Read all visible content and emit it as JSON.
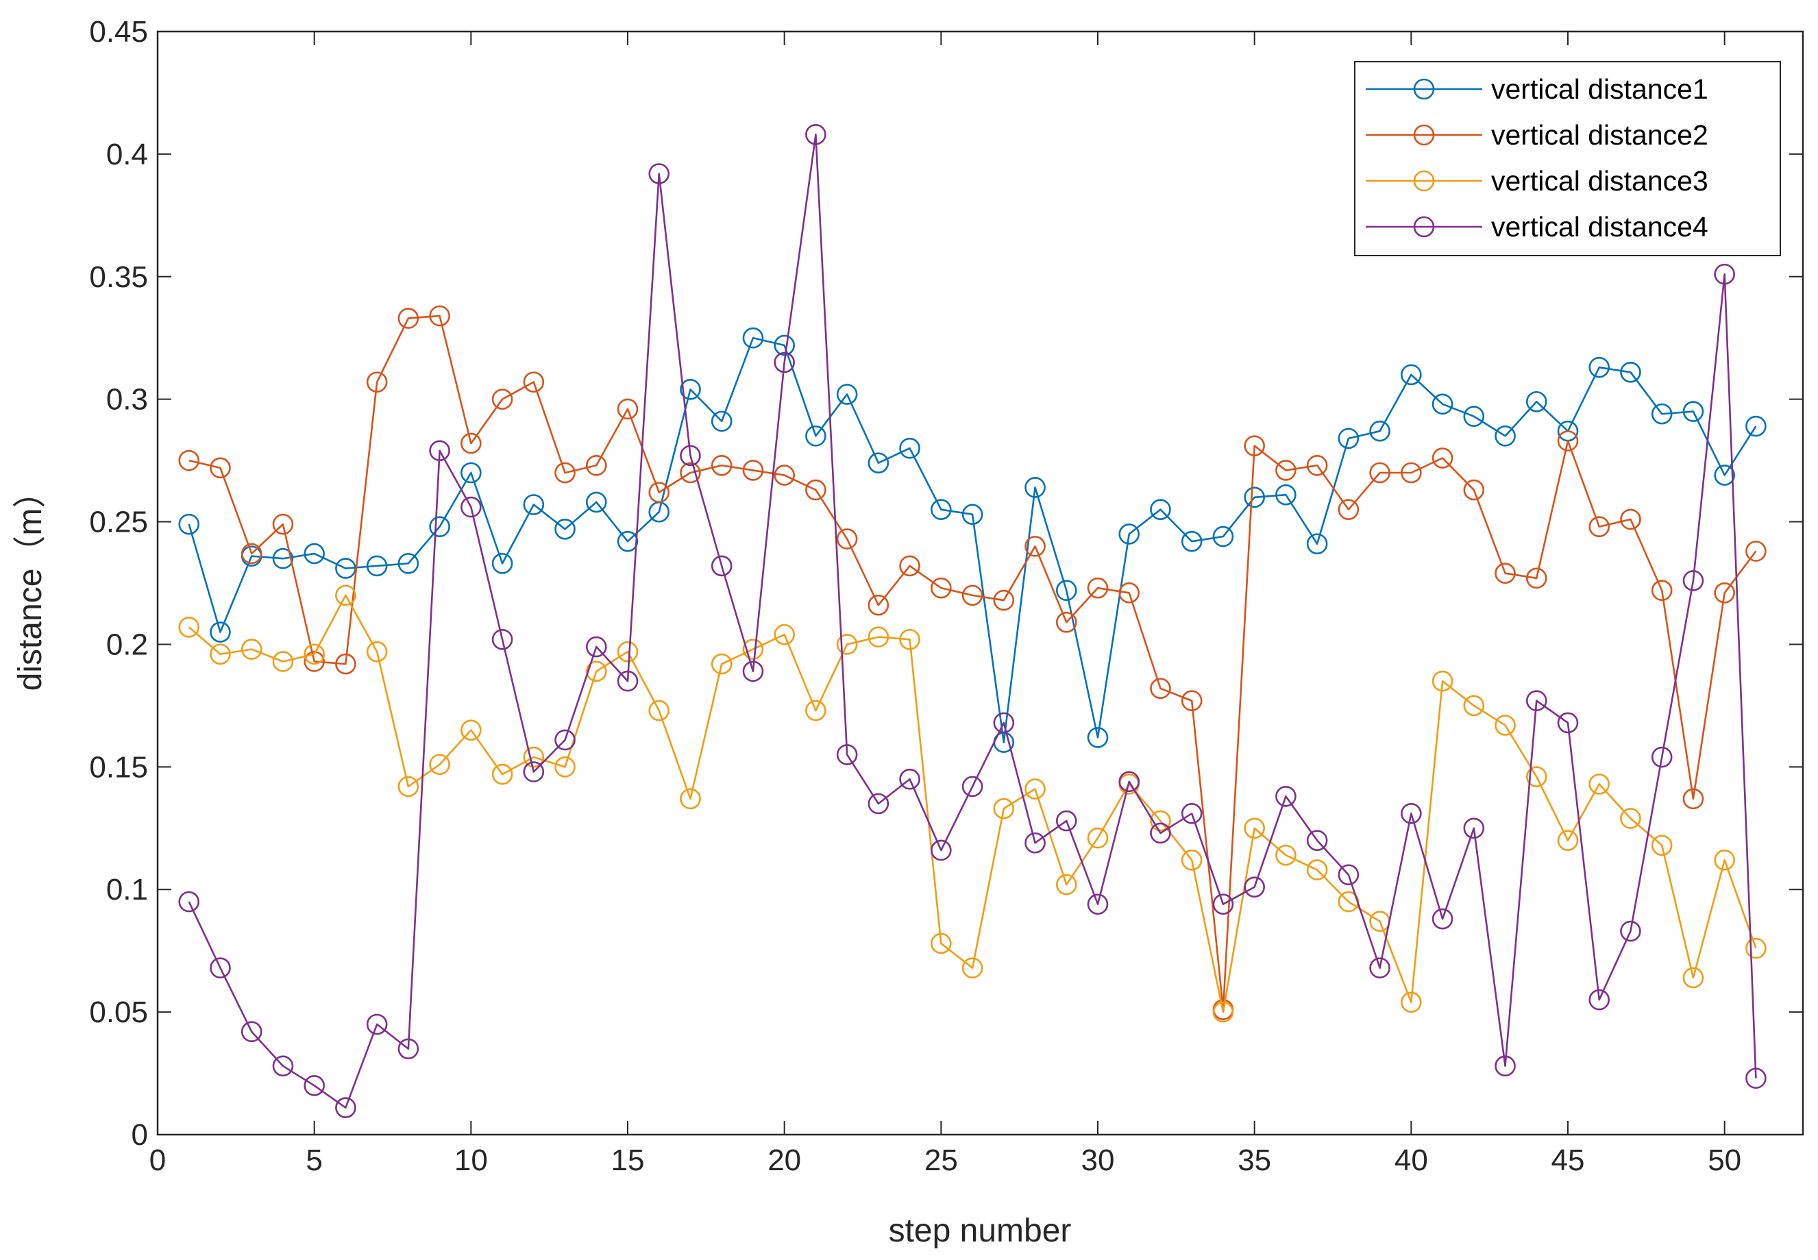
{
  "chart_data": {
    "type": "line",
    "title": "",
    "xlabel": "step number",
    "ylabel": "distance（m）",
    "xlim": [
      0,
      52.5
    ],
    "ylim": [
      0,
      0.45
    ],
    "xticks": [
      0,
      5,
      10,
      15,
      20,
      25,
      30,
      35,
      40,
      45,
      50
    ],
    "xtick_labels": [
      "0",
      "5",
      "10",
      "15",
      "20",
      "25",
      "30",
      "35",
      "40",
      "45",
      "50"
    ],
    "yticks": [
      0,
      0.05,
      0.1,
      0.15,
      0.2,
      0.25,
      0.3,
      0.35,
      0.4,
      0.45
    ],
    "ytick_labels": [
      "0",
      "0.05",
      "0.1",
      "0.15",
      "0.2",
      "0.25",
      "0.3",
      "0.35",
      "0.4",
      "0.45"
    ],
    "grid": false,
    "legend_position": "top-right",
    "marker": "circle-open",
    "x": [
      1,
      2,
      3,
      4,
      5,
      6,
      7,
      8,
      9,
      10,
      11,
      12,
      13,
      14,
      15,
      16,
      17,
      18,
      19,
      20,
      21,
      22,
      23,
      24,
      25,
      26,
      27,
      28,
      29,
      30,
      31,
      32,
      33,
      34,
      35,
      36,
      37,
      38,
      39,
      40,
      41,
      42,
      43,
      44,
      45,
      46,
      47,
      48,
      49,
      50,
      51
    ],
    "series": [
      {
        "name": "vertical distance1",
        "color": "#0072BD",
        "values": [
          0.249,
          0.205,
          0.236,
          0.235,
          0.237,
          0.231,
          0.232,
          0.233,
          0.248,
          0.27,
          0.233,
          0.257,
          0.247,
          0.258,
          0.242,
          0.254,
          0.304,
          0.291,
          0.325,
          0.322,
          0.285,
          0.302,
          0.274,
          0.28,
          0.255,
          0.253,
          0.16,
          0.264,
          0.222,
          0.162,
          0.245,
          0.255,
          0.242,
          0.244,
          0.26,
          0.261,
          0.241,
          0.284,
          0.287,
          0.31,
          0.298,
          0.293,
          0.285,
          0.299,
          0.287,
          0.313,
          0.311,
          0.294,
          0.295,
          0.269,
          0.289
        ]
      },
      {
        "name": "vertical distance2",
        "color": "#D95319",
        "values": [
          0.275,
          0.272,
          0.237,
          0.249,
          0.193,
          0.192,
          0.307,
          0.333,
          0.334,
          0.282,
          0.3,
          0.307,
          0.27,
          0.273,
          0.296,
          0.262,
          0.27,
          0.273,
          0.271,
          0.269,
          0.263,
          0.243,
          0.216,
          0.232,
          0.223,
          0.22,
          0.218,
          0.24,
          0.209,
          0.223,
          0.221,
          0.182,
          0.177,
          0.051,
          0.281,
          0.271,
          0.273,
          0.255,
          0.27,
          0.27,
          0.276,
          0.263,
          0.229,
          0.227,
          0.283,
          0.248,
          0.251,
          0.222,
          0.137,
          0.221,
          0.238
        ]
      },
      {
        "name": "vertical distance3",
        "color": "#EDB120",
        "stroke": "#F39C12",
        "values": [
          0.207,
          0.196,
          0.198,
          0.193,
          0.196,
          0.22,
          0.197,
          0.142,
          0.151,
          0.165,
          0.147,
          0.154,
          0.15,
          0.189,
          0.197,
          0.173,
          0.137,
          0.192,
          0.198,
          0.204,
          0.173,
          0.2,
          0.203,
          0.202,
          0.078,
          0.068,
          0.133,
          0.141,
          0.102,
          0.121,
          0.143,
          0.128,
          0.112,
          0.05,
          0.125,
          0.114,
          0.108,
          0.095,
          0.087,
          0.054,
          0.185,
          0.175,
          0.167,
          0.146,
          0.12,
          0.143,
          0.129,
          0.118,
          0.064,
          0.112,
          0.076
        ]
      },
      {
        "name": "vertical distance4",
        "color": "#7E2F8E",
        "values": [
          0.095,
          0.068,
          0.042,
          0.028,
          0.02,
          0.011,
          0.045,
          0.035,
          0.279,
          0.256,
          0.202,
          0.148,
          0.161,
          0.199,
          0.185,
          0.392,
          0.277,
          0.232,
          0.189,
          0.315,
          0.408,
          0.155,
          0.135,
          0.145,
          0.116,
          0.142,
          0.168,
          0.119,
          0.128,
          0.094,
          0.144,
          0.123,
          0.131,
          0.094,
          0.101,
          0.138,
          0.12,
          0.106,
          0.068,
          0.131,
          0.088,
          0.125,
          0.028,
          0.177,
          0.168,
          0.055,
          0.083,
          0.154,
          0.226,
          0.351,
          0.023
        ]
      }
    ]
  }
}
